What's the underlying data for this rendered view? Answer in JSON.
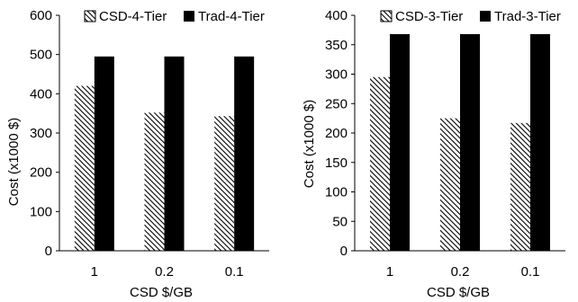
{
  "chart_data": [
    {
      "type": "bar",
      "categories": [
        "1",
        "0.2",
        "0.1"
      ],
      "series": [
        {
          "name": "CSD-4-Tier",
          "values": [
            420,
            352,
            343
          ],
          "pattern": "hatch"
        },
        {
          "name": "Trad-4-Tier",
          "values": [
            495,
            495,
            495
          ],
          "pattern": "solid"
        }
      ],
      "xlabel": "CSD $/GB",
      "ylabel": "Cost (x1000 $)",
      "ylim": [
        0,
        600
      ],
      "yticks": [
        "0",
        "100",
        "200",
        "300",
        "400",
        "500",
        "600"
      ],
      "grid": false,
      "legend": "top"
    },
    {
      "type": "bar",
      "categories": [
        "1",
        "0.2",
        "0.1"
      ],
      "series": [
        {
          "name": "CSD-3-Tier",
          "values": [
            295,
            225,
            217
          ],
          "pattern": "hatch"
        },
        {
          "name": "Trad-3-Tier",
          "values": [
            368,
            368,
            368
          ],
          "pattern": "solid"
        }
      ],
      "xlabel": "CSD $/GB",
      "ylabel": "Cost (x1000 $)",
      "ylim": [
        0,
        400
      ],
      "yticks": [
        "0",
        "50",
        "100",
        "150",
        "200",
        "250",
        "300",
        "350",
        "400"
      ],
      "grid": false,
      "legend": "top"
    }
  ],
  "colors": {
    "solid_bar": "#000000",
    "hatch_line": "#000000",
    "hatch_bg": "#ffffff",
    "axis": "#000000"
  }
}
